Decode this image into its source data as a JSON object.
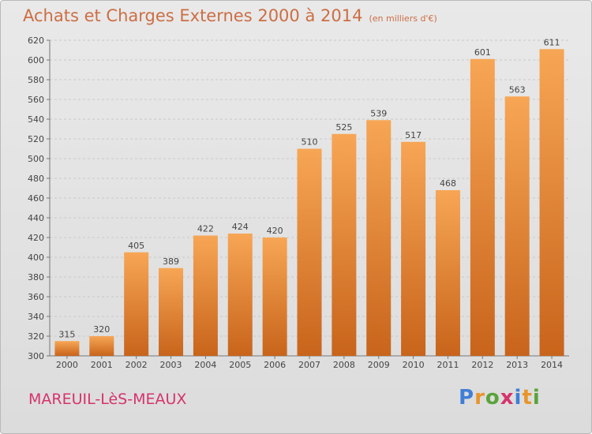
{
  "header": {
    "title": "Achats et Charges Externes 2000 à 2014",
    "unit_note": "(en milliers d'€)"
  },
  "footer": {
    "commune": "MAREUIL-LèS-MEAUX",
    "brand_letters": [
      "P",
      "r",
      "o",
      "x",
      "i",
      "t",
      "i"
    ]
  },
  "colors": {
    "bar_light": "#f7a655",
    "bar_dark": "#c8641b",
    "title": "#cc6e44",
    "commune": "#d6336c"
  },
  "chart_data": {
    "type": "bar",
    "title": "Achats et Charges Externes 2000 à 2014",
    "subtitle": "(en milliers d'€)",
    "categories": [
      "2000",
      "2001",
      "2002",
      "2003",
      "2004",
      "2005",
      "2006",
      "2007",
      "2008",
      "2009",
      "2010",
      "2011",
      "2012",
      "2013",
      "2014"
    ],
    "values": [
      315,
      320,
      405,
      389,
      422,
      424,
      420,
      510,
      525,
      539,
      517,
      468,
      601,
      563,
      611
    ],
    "ylim": [
      300,
      620
    ],
    "yticks": [
      300,
      320,
      340,
      360,
      380,
      400,
      420,
      440,
      460,
      480,
      500,
      520,
      540,
      560,
      580,
      600,
      620
    ],
    "xlabel": "",
    "ylabel": "",
    "grid": true,
    "data_labels": true
  }
}
